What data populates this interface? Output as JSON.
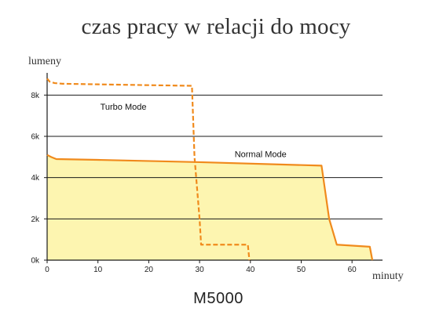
{
  "title": "czas pracy w relacji do mocy",
  "subtitle": "M5000",
  "chart_data": {
    "type": "line",
    "title": "czas pracy w relacji do mocy",
    "subtitle": "M5000",
    "xlabel": "minuty",
    "ylabel": "lumeny",
    "xlim": [
      0,
      66
    ],
    "ylim": [
      0,
      9000
    ],
    "x_ticks": [
      0,
      10,
      20,
      30,
      40,
      50,
      60
    ],
    "y_ticks": [
      0,
      2000,
      4000,
      6000,
      8000
    ],
    "y_tick_labels": [
      "0k",
      "2k",
      "4k",
      "6k",
      "8k"
    ],
    "grid": "horizontal",
    "series": [
      {
        "name": "Turbo Mode",
        "style": "dashed",
        "color": "#f08a1c",
        "x": [
          0,
          0.5,
          1.5,
          3,
          10,
          20,
          28.5,
          29,
          30,
          30.3,
          39.5,
          39.8
        ],
        "y": [
          8800,
          8650,
          8580,
          8550,
          8520,
          8480,
          8450,
          5000,
          2000,
          750,
          750,
          0
        ]
      },
      {
        "name": "Normal Mode",
        "style": "solid",
        "color": "#f08a1c",
        "fill": "#fdf5b0",
        "x": [
          0,
          0.8,
          1.8,
          10,
          30,
          54,
          55.5,
          57,
          63.5,
          64
        ],
        "y": [
          5100,
          5000,
          4900,
          4860,
          4750,
          4580,
          2000,
          750,
          650,
          0
        ]
      }
    ],
    "annotations": [
      {
        "text": "Turbo Mode",
        "x": 15,
        "y": 7300
      },
      {
        "text": "Normal Mode",
        "x": 42,
        "y": 5000
      }
    ]
  }
}
